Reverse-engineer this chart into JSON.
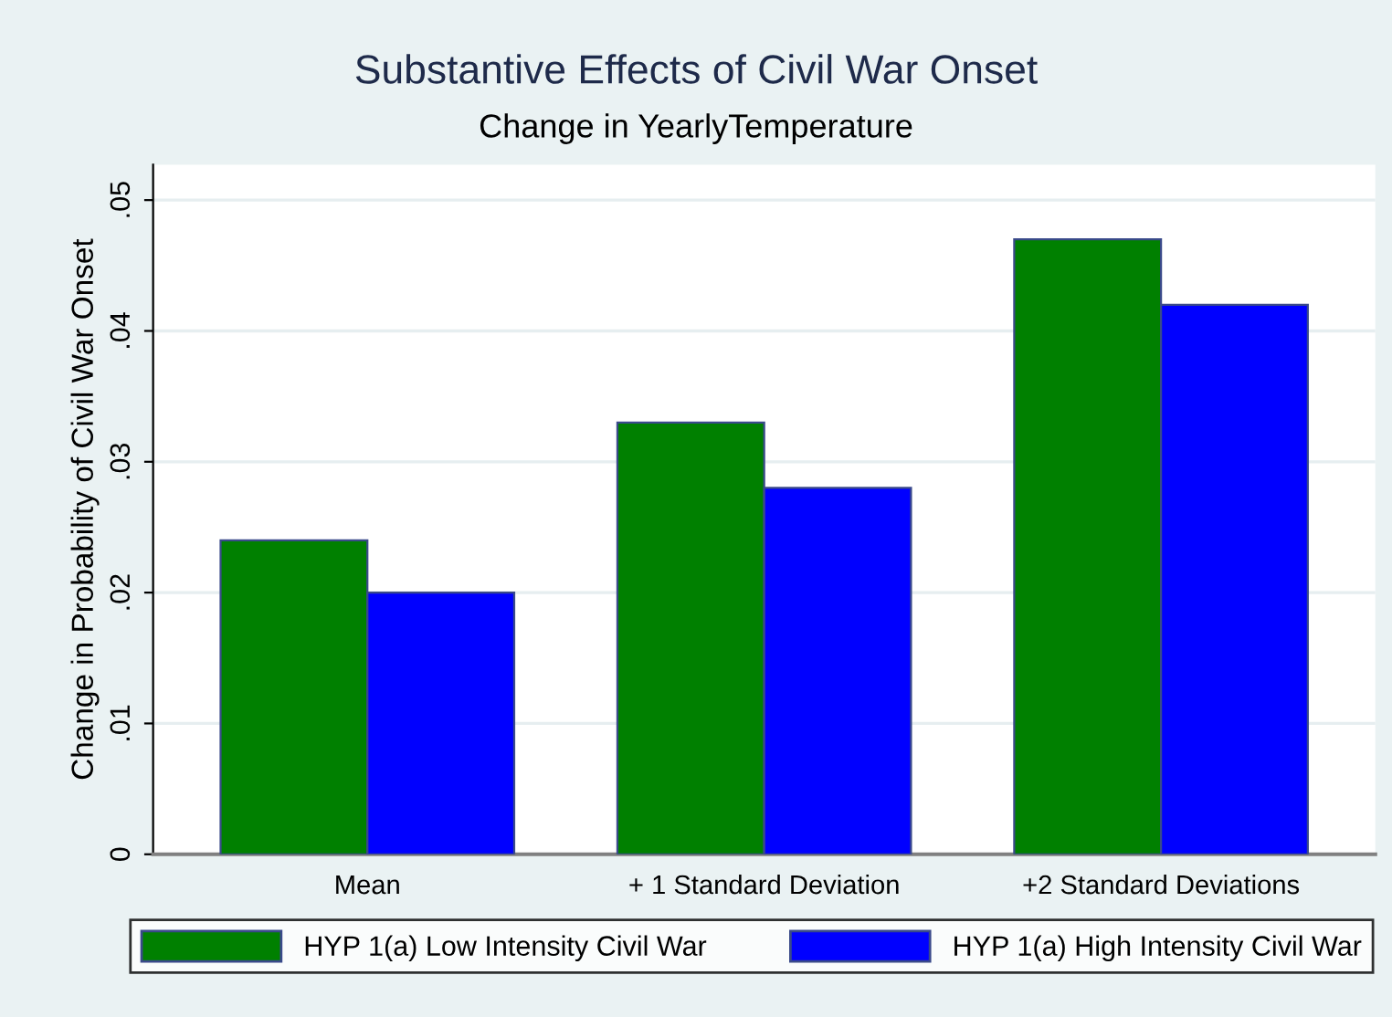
{
  "chart_data": {
    "type": "bar",
    "title": "Substantive Effects of Civil War Onset",
    "subtitle": "Change in YearlyTemperature",
    "ylabel": "Change in Probability of Civil War Onset",
    "categories": [
      "Mean",
      "+ 1 Standard Deviation",
      "+2 Standard Deviations"
    ],
    "series": [
      {
        "name": "HYP 1(a) Low Intensity Civil War",
        "color": "#008000",
        "values": [
          0.024,
          0.033,
          0.047
        ]
      },
      {
        "name": "HYP 1(a) High Intensity Civil War",
        "color": "#0000ff",
        "values": [
          0.02,
          0.028,
          0.042
        ]
      }
    ],
    "ylim": [
      0,
      0.0527
    ],
    "yticks": [
      {
        "value": 0,
        "label": "0"
      },
      {
        "value": 0.01,
        "label": ".01"
      },
      {
        "value": 0.02,
        "label": ".02"
      },
      {
        "value": 0.03,
        "label": ".03"
      },
      {
        "value": 0.04,
        "label": ".04"
      },
      {
        "value": 0.05,
        "label": ".05"
      }
    ],
    "grid": "y",
    "legend": "bottom"
  }
}
